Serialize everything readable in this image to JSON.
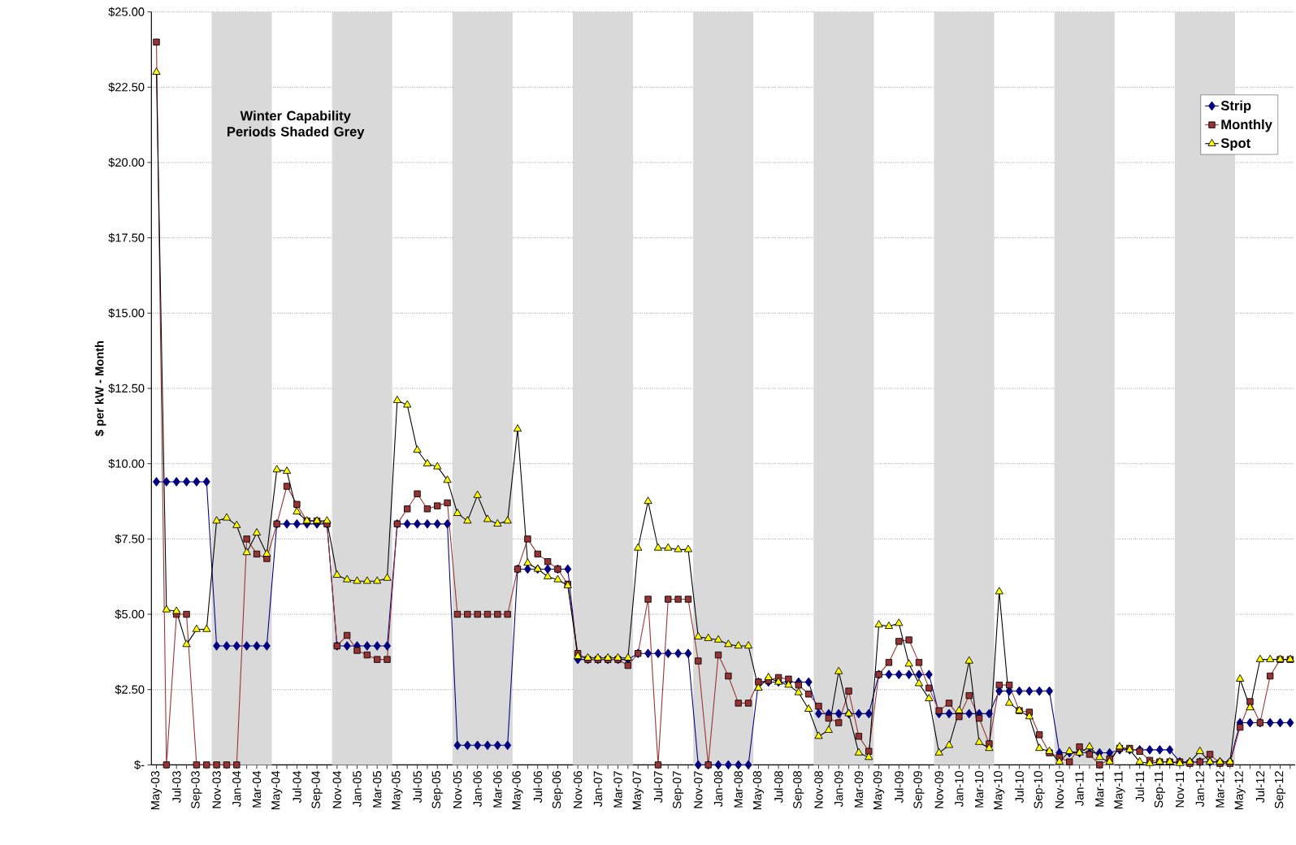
{
  "chart_data": {
    "type": "line",
    "ylabel": "$ per kW - Month",
    "annotations": [
      "Winter Capability Periods Shaded Grey"
    ],
    "x": [
      "2003-05",
      "2003-06",
      "2003-07",
      "2003-08",
      "2003-09",
      "2003-10",
      "2003-11",
      "2003-12",
      "2004-01",
      "2004-02",
      "2004-03",
      "2004-04",
      "2004-05",
      "2004-06",
      "2004-07",
      "2004-08",
      "2004-09",
      "2004-10",
      "2004-11",
      "2004-12",
      "2005-01",
      "2005-02",
      "2005-03",
      "2005-04",
      "2005-05",
      "2005-06",
      "2005-07",
      "2005-08",
      "2005-09",
      "2005-10",
      "2005-11",
      "2005-12",
      "2006-01",
      "2006-02",
      "2006-03",
      "2006-04",
      "2006-05",
      "2006-06",
      "2006-07",
      "2006-08",
      "2006-09",
      "2006-10",
      "2006-11",
      "2006-12",
      "2007-01",
      "2007-02",
      "2007-03",
      "2007-04",
      "2007-05",
      "2007-06",
      "2007-07",
      "2007-08",
      "2007-09",
      "2007-10",
      "2007-11",
      "2007-12",
      "2008-01",
      "2008-02",
      "2008-03",
      "2008-04",
      "2008-05",
      "2008-06",
      "2008-07",
      "2008-08",
      "2008-09",
      "2008-10",
      "2008-11",
      "2008-12",
      "2009-01",
      "2009-02",
      "2009-03",
      "2009-04",
      "2009-05",
      "2009-06",
      "2009-07",
      "2009-08",
      "2009-09",
      "2009-10",
      "2009-11",
      "2009-12",
      "2010-01",
      "2010-02",
      "2010-03",
      "2010-04",
      "2010-05",
      "2010-06",
      "2010-07",
      "2010-08",
      "2010-09",
      "2010-10",
      "2010-11",
      "2010-12",
      "2011-01",
      "2011-02",
      "2011-03",
      "2011-04",
      "2011-05",
      "2011-06",
      "2011-07",
      "2011-08",
      "2011-09",
      "2011-10",
      "2011-11",
      "2011-12",
      "2012-01",
      "2012-02",
      "2012-03",
      "2012-04",
      "2012-05",
      "2012-06",
      "2012-07",
      "2012-08",
      "2012-09",
      "2012-10"
    ],
    "series": [
      {
        "name": "Strip",
        "color": "#000080",
        "marker": "diamond",
        "values": [
          9.4,
          9.4,
          9.4,
          9.4,
          9.4,
          9.4,
          3.95,
          3.95,
          3.95,
          3.95,
          3.95,
          3.95,
          8.0,
          8.0,
          8.0,
          8.0,
          8.0,
          8.0,
          3.95,
          3.95,
          3.95,
          3.95,
          3.95,
          3.95,
          8.0,
          8.0,
          8.0,
          8.0,
          8.0,
          8.0,
          0.65,
          0.65,
          0.65,
          0.65,
          0.65,
          0.65,
          6.5,
          6.5,
          6.5,
          6.5,
          6.5,
          6.5,
          3.5,
          3.5,
          3.5,
          3.5,
          3.5,
          3.5,
          3.7,
          3.7,
          3.7,
          3.7,
          3.7,
          3.7,
          0,
          0,
          0,
          0,
          0,
          0,
          2.75,
          2.75,
          2.75,
          2.75,
          2.75,
          2.75,
          1.7,
          1.7,
          1.7,
          1.7,
          1.7,
          1.7,
          3.0,
          3.0,
          3.0,
          3.0,
          3.0,
          3.0,
          1.7,
          1.7,
          1.7,
          1.7,
          1.7,
          1.7,
          2.45,
          2.45,
          2.45,
          2.45,
          2.45,
          2.45,
          0.4,
          0.4,
          0.4,
          0.4,
          0.4,
          0.4,
          0.5,
          0.5,
          0.5,
          0.5,
          0.5,
          0.5,
          0.1,
          0.1,
          0.1,
          0.1,
          0.1,
          0.1,
          1.4,
          1.4,
          1.4,
          1.4,
          1.4,
          1.4
        ]
      },
      {
        "name": "Monthly",
        "color": "#993333",
        "marker": "square",
        "values": [
          24.0,
          0,
          5.0,
          5.0,
          0,
          0,
          0,
          0,
          0,
          7.5,
          7.0,
          6.85,
          8.0,
          9.25,
          8.65,
          8.1,
          8.1,
          8.0,
          3.95,
          4.3,
          3.8,
          3.65,
          3.5,
          3.5,
          8.0,
          8.5,
          9.0,
          8.5,
          8.6,
          8.7,
          5.0,
          5.0,
          5.0,
          5.0,
          5.0,
          5.0,
          6.5,
          7.5,
          7.0,
          6.75,
          6.5,
          6.0,
          3.7,
          3.5,
          3.5,
          3.5,
          3.5,
          3.3,
          3.7,
          5.5,
          0,
          5.5,
          5.5,
          5.5,
          3.45,
          0,
          3.65,
          2.95,
          2.05,
          2.05,
          2.75,
          2.8,
          2.9,
          2.85,
          2.65,
          2.35,
          1.95,
          1.55,
          1.4,
          2.45,
          0.95,
          0.45,
          3.0,
          3.4,
          4.1,
          4.15,
          3.4,
          2.55,
          1.8,
          2.05,
          1.6,
          2.3,
          1.55,
          0.7,
          2.65,
          2.65,
          1.8,
          1.75,
          1.0,
          0.4,
          0.25,
          0.1,
          0.6,
          0.35,
          0,
          0.2,
          0.55,
          0.55,
          0.45,
          0.15,
          0.1,
          0.1,
          0.1,
          0.05,
          0.1,
          0.35,
          0.05,
          0.05,
          1.25,
          2.1,
          1.4,
          2.95,
          3.5,
          3.5
        ]
      },
      {
        "name": "Spot",
        "color": "#ffff00",
        "marker": "triangle",
        "values": [
          23.0,
          5.15,
          5.1,
          4.0,
          4.5,
          4.5,
          8.1,
          8.2,
          7.95,
          7.05,
          7.7,
          7.0,
          9.8,
          9.75,
          8.4,
          8.1,
          8.1,
          8.1,
          6.3,
          6.15,
          6.1,
          6.1,
          6.1,
          6.2,
          12.1,
          11.95,
          10.45,
          10.0,
          9.9,
          9.45,
          8.35,
          8.1,
          8.95,
          8.15,
          8.0,
          8.1,
          11.15,
          6.7,
          6.5,
          6.25,
          6.15,
          5.95,
          3.6,
          3.55,
          3.55,
          3.55,
          3.55,
          3.55,
          7.2,
          8.75,
          7.2,
          7.2,
          7.15,
          7.15,
          4.25,
          4.2,
          4.15,
          4.0,
          3.95,
          3.95,
          2.55,
          2.9,
          2.75,
          2.65,
          2.4,
          1.85,
          0.95,
          1.15,
          3.1,
          1.7,
          0.4,
          0.25,
          4.65,
          4.6,
          4.7,
          3.35,
          2.7,
          2.2,
          0.4,
          0.65,
          1.8,
          3.45,
          0.75,
          0.55,
          5.75,
          2.05,
          1.8,
          1.6,
          0.55,
          0.45,
          0.1,
          0.45,
          0.4,
          0.6,
          0.25,
          0.1,
          0.6,
          0.5,
          0.1,
          0.05,
          0.1,
          0.1,
          0.05,
          0.1,
          0.45,
          0.1,
          0.1,
          0.1,
          2.85,
          1.9,
          3.5,
          3.5,
          3.5,
          3.5
        ]
      }
    ],
    "xlim": [
      "2003-04-16",
      "2012-10-16"
    ],
    "xticks": [
      {
        "value": "2003-05",
        "label": "May-03"
      },
      {
        "value": "2003-06",
        "label": null
      },
      {
        "value": "2003-07",
        "label": "Jul-03"
      },
      {
        "value": "2003-08",
        "label": null
      },
      {
        "value": "2003-09",
        "label": "Sep-03"
      },
      {
        "value": "2003-10",
        "label": null
      },
      {
        "value": "2003-11",
        "label": "Nov-03"
      },
      {
        "value": "2003-12",
        "label": null
      },
      {
        "value": "2004-01",
        "label": "Jan-04"
      },
      {
        "value": "2004-02",
        "label": null
      },
      {
        "value": "2004-03",
        "label": "Mar-04"
      },
      {
        "value": "2004-04",
        "label": null
      },
      {
        "value": "2004-05",
        "label": "May-04"
      },
      {
        "value": "2004-06",
        "label": null
      },
      {
        "value": "2004-07",
        "label": "Jul-04"
      },
      {
        "value": "2004-08",
        "label": null
      },
      {
        "value": "2004-09",
        "label": "Sep-04"
      },
      {
        "value": "2004-10",
        "label": null
      },
      {
        "value": "2004-11",
        "label": "Nov-04"
      },
      {
        "value": "2004-12",
        "label": null
      },
      {
        "value": "2005-01",
        "label": "Jan-05"
      },
      {
        "value": "2005-02",
        "label": null
      },
      {
        "value": "2005-03",
        "label": "Mar-05"
      },
      {
        "value": "2005-04",
        "label": null
      },
      {
        "value": "2005-05",
        "label": "May-05"
      },
      {
        "value": "2005-06",
        "label": null
      },
      {
        "value": "2005-07",
        "label": "Jul-05"
      },
      {
        "value": "2005-08",
        "label": null
      },
      {
        "value": "2005-09",
        "label": "Sep-05"
      },
      {
        "value": "2005-10",
        "label": null
      },
      {
        "value": "2005-11",
        "label": "Nov-05"
      },
      {
        "value": "2005-12",
        "label": null
      },
      {
        "value": "2006-01",
        "label": "Jan-06"
      },
      {
        "value": "2006-02",
        "label": null
      },
      {
        "value": "2006-03",
        "label": "Mar-06"
      },
      {
        "value": "2006-04",
        "label": null
      },
      {
        "value": "2006-05",
        "label": "May-06"
      },
      {
        "value": "2006-06",
        "label": null
      },
      {
        "value": "2006-07",
        "label": "Jul-06"
      },
      {
        "value": "2006-08",
        "label": null
      },
      {
        "value": "2006-09",
        "label": "Sep-06"
      },
      {
        "value": "2006-10",
        "label": null
      },
      {
        "value": "2006-11",
        "label": "Nov-06"
      },
      {
        "value": "2006-12",
        "label": null
      },
      {
        "value": "2007-01",
        "label": "Jan-07"
      },
      {
        "value": "2007-02",
        "label": null
      },
      {
        "value": "2007-03",
        "label": "Mar-07"
      },
      {
        "value": "2007-04",
        "label": null
      },
      {
        "value": "2007-05",
        "label": "May-07"
      },
      {
        "value": "2007-06",
        "label": null
      },
      {
        "value": "2007-07",
        "label": "Jul-07"
      },
      {
        "value": "2007-08",
        "label": null
      },
      {
        "value": "2007-09",
        "label": "Sep-07"
      },
      {
        "value": "2007-10",
        "label": null
      },
      {
        "value": "2007-11",
        "label": "Nov-07"
      },
      {
        "value": "2007-12",
        "label": null
      },
      {
        "value": "2008-01",
        "label": "Jan-08"
      },
      {
        "value": "2008-02",
        "label": null
      },
      {
        "value": "2008-03",
        "label": "Mar-08"
      },
      {
        "value": "2008-04",
        "label": null
      },
      {
        "value": "2008-05",
        "label": "May-08"
      },
      {
        "value": "2008-06",
        "label": null
      },
      {
        "value": "2008-07",
        "label": "Jul-08"
      },
      {
        "value": "2008-08",
        "label": null
      },
      {
        "value": "2008-09",
        "label": "Sep-08"
      },
      {
        "value": "2008-10",
        "label": null
      },
      {
        "value": "2008-11",
        "label": "Nov-08"
      },
      {
        "value": "2008-12",
        "label": null
      },
      {
        "value": "2009-01",
        "label": "Jan-09"
      },
      {
        "value": "2009-02",
        "label": null
      },
      {
        "value": "2009-03",
        "label": "Mar-09"
      },
      {
        "value": "2009-04",
        "label": null
      },
      {
        "value": "2009-05",
        "label": "May-09"
      },
      {
        "value": "2009-06",
        "label": null
      },
      {
        "value": "2009-07",
        "label": "Jul-09"
      },
      {
        "value": "2009-08",
        "label": null
      },
      {
        "value": "2009-09",
        "label": "Sep-09"
      },
      {
        "value": "2009-10",
        "label": null
      },
      {
        "value": "2009-11",
        "label": "Nov-09"
      },
      {
        "value": "2009-12",
        "label": null
      },
      {
        "value": "2010-01",
        "label": "Jan-10"
      },
      {
        "value": "2010-02",
        "label": null
      },
      {
        "value": "2010-03",
        "label": "Mar-10"
      },
      {
        "value": "2010-04",
        "label": null
      },
      {
        "value": "2010-05",
        "label": "May-10"
      },
      {
        "value": "2010-06",
        "label": null
      },
      {
        "value": "2010-07",
        "label": "Jul-10"
      },
      {
        "value": "2010-08",
        "label": null
      },
      {
        "value": "2010-09",
        "label": "Sep-10"
      },
      {
        "value": "2010-10",
        "label": null
      },
      {
        "value": "2010-11",
        "label": "Nov-10"
      },
      {
        "value": "2010-12",
        "label": null
      },
      {
        "value": "2011-01",
        "label": "Jan-11"
      },
      {
        "value": "2011-02",
        "label": null
      },
      {
        "value": "2011-03",
        "label": "Mar-11"
      },
      {
        "value": "2011-04",
        "label": null
      },
      {
        "value": "2011-05",
        "label": "May-11"
      },
      {
        "value": "2011-06",
        "label": null
      },
      {
        "value": "2011-07",
        "label": "Jul-11"
      },
      {
        "value": "2011-08",
        "label": null
      },
      {
        "value": "2011-09",
        "label": "Sep-11"
      },
      {
        "value": "2011-10",
        "label": null
      },
      {
        "value": "2011-11",
        "label": "Nov-11"
      },
      {
        "value": "2011-12",
        "label": null
      },
      {
        "value": "2012-01",
        "label": "Jan-12"
      },
      {
        "value": "2012-02",
        "label": null
      },
      {
        "value": "2012-03",
        "label": "Mar-12"
      },
      {
        "value": "2012-04",
        "label": null
      },
      {
        "value": "2012-05",
        "label": "May-12"
      },
      {
        "value": "2012-06",
        "label": null
      },
      {
        "value": "2012-07",
        "label": "Jul-12"
      },
      {
        "value": "2012-08",
        "label": null
      },
      {
        "value": "2012-09",
        "label": "Sep-12"
      },
      {
        "value": "2012-10",
        "label": null
      }
    ],
    "ylim": [
      0,
      25
    ],
    "yticks": [
      {
        "value": 0,
        "label": "$-"
      },
      {
        "value": 2.5,
        "label": "$2.50"
      },
      {
        "value": 5,
        "label": "$5.00"
      },
      {
        "value": 7.5,
        "label": "$7.50"
      },
      {
        "value": 10,
        "label": "$10.00"
      },
      {
        "value": 12.5,
        "label": "$12.50"
      },
      {
        "value": 15,
        "label": "$15.00"
      },
      {
        "value": 17.5,
        "label": "$17.50"
      },
      {
        "value": 20,
        "label": "$20.00"
      },
      {
        "value": 22.5,
        "label": "$22.50"
      },
      {
        "value": 25,
        "label": "$25.00"
      }
    ],
    "bands": [
      {
        "axis": "x",
        "from": "2003-10-16",
        "to": "2004-04-16",
        "color": "#d9d9d9"
      },
      {
        "axis": "x",
        "from": "2004-10-16",
        "to": "2005-04-16",
        "color": "#d9d9d9"
      },
      {
        "axis": "x",
        "from": "2005-10-16",
        "to": "2006-04-16",
        "color": "#d9d9d9"
      },
      {
        "axis": "x",
        "from": "2006-10-16",
        "to": "2007-04-16",
        "color": "#d9d9d9"
      },
      {
        "axis": "x",
        "from": "2007-10-16",
        "to": "2008-04-16",
        "color": "#d9d9d9"
      },
      {
        "axis": "x",
        "from": "2008-10-16",
        "to": "2009-04-16",
        "color": "#d9d9d9"
      },
      {
        "axis": "x",
        "from": "2009-10-16",
        "to": "2010-04-16",
        "color": "#d9d9d9"
      },
      {
        "axis": "x",
        "from": "2010-10-16",
        "to": "2011-04-16",
        "color": "#d9d9d9"
      },
      {
        "axis": "x",
        "from": "2011-10-16",
        "to": "2012-04-16",
        "color": "#d9d9d9"
      }
    ],
    "grid": "y",
    "legend": "top right"
  }
}
